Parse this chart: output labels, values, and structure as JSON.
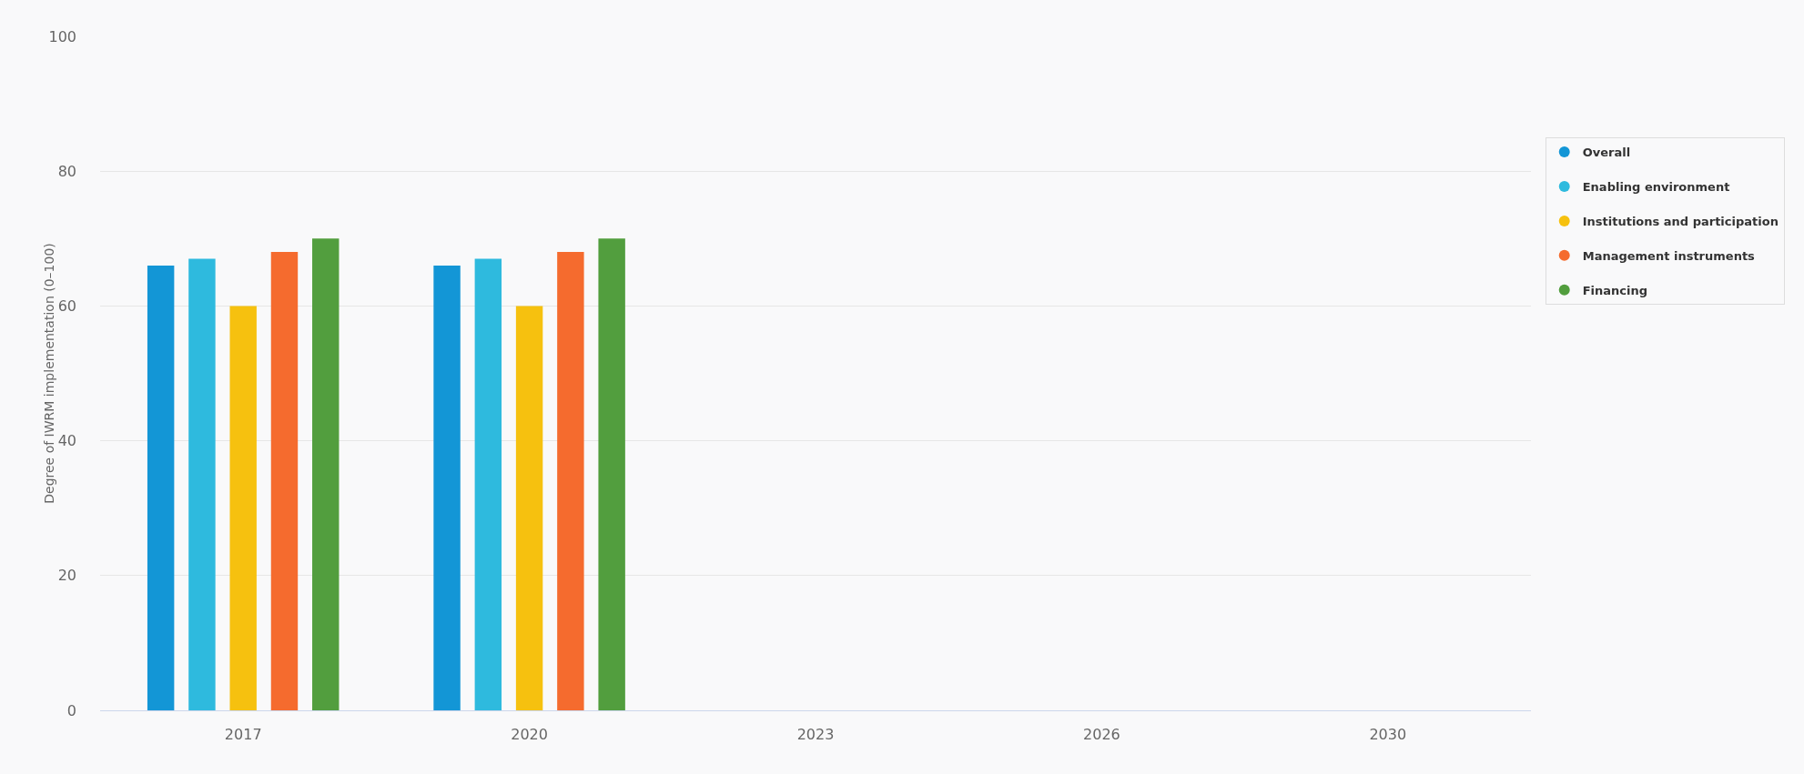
{
  "chart_data": {
    "type": "bar",
    "ylabel": "Degree of IWRM implementation (0–100)",
    "categories": [
      "2017",
      "2020",
      "2023",
      "2026",
      "2030"
    ],
    "series": [
      {
        "name": "Overall",
        "color": "#1396d6",
        "values": [
          66,
          66,
          null,
          null,
          null
        ]
      },
      {
        "name": "Enabling environment",
        "color": "#2ebade",
        "values": [
          67,
          67,
          null,
          null,
          null
        ]
      },
      {
        "name": "Institutions and participation",
        "color": "#f6c10f",
        "values": [
          60,
          60,
          null,
          null,
          null
        ]
      },
      {
        "name": "Management instruments",
        "color": "#f56b2e",
        "values": [
          68,
          68,
          null,
          null,
          null
        ]
      },
      {
        "name": "Financing",
        "color": "#529e3e",
        "values": [
          70,
          70,
          null,
          null,
          null
        ]
      }
    ],
    "ylim": [
      0,
      100
    ],
    "yticks": [
      0,
      20,
      40,
      60,
      80,
      100
    ],
    "grid": "y",
    "legend": "right",
    "marker": "circle"
  }
}
